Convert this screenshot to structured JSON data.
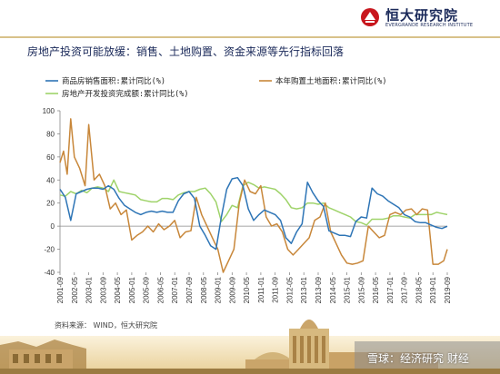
{
  "header": {
    "logo_name": "恒大研究院",
    "logo_sub": "EVERGRANDE RESEARCH INSTITUTE"
  },
  "page_title": "房地产投资可能放缓：销售、土地购置、资金来源等先行指标回落",
  "source_note": "资料来源：   WIND，恒大研究院",
  "watermark": "雪球：经济研究 财经",
  "colors": {
    "sales": "#2e75b6",
    "land": "#c8873a",
    "funds": "#9fd36a",
    "title": "#1b2a5a"
  },
  "chart_data": {
    "type": "line",
    "title": "",
    "xlabel": "",
    "ylabel": "",
    "ylim": [
      -40,
      100
    ],
    "yticks": [
      -40,
      -20,
      0,
      20,
      40,
      60,
      80,
      100
    ],
    "x_tick_labels": [
      "2001-09",
      "2002-05",
      "2003-01",
      "2003-09",
      "2004-05",
      "2005-01",
      "2005-09",
      "2006-05",
      "2007-01",
      "2007-09",
      "2008-05",
      "2009-01",
      "2009-09",
      "2010-05",
      "2011-01",
      "2011-09",
      "2012-05",
      "2013-01",
      "2013-09",
      "2014-05",
      "2015-01",
      "2015-09",
      "2016-05",
      "2017-01",
      "2017-09",
      "2018-05",
      "2019-01",
      "2019-09"
    ],
    "legend_position": "top",
    "series": [
      {
        "name": "商品房销售面积:累计同比(%)",
        "key": "sales",
        "points": [
          [
            "2001-09",
            32
          ],
          [
            "2001-12",
            25
          ],
          [
            "2002-03",
            5
          ],
          [
            "2002-06",
            28
          ],
          [
            "2002-09",
            30
          ],
          [
            "2002-12",
            32
          ],
          [
            "2003-03",
            33
          ],
          [
            "2003-06",
            33
          ],
          [
            "2003-09",
            32
          ],
          [
            "2003-12",
            35
          ],
          [
            "2004-03",
            32
          ],
          [
            "2004-06",
            24
          ],
          [
            "2004-09",
            18
          ],
          [
            "2004-12",
            15
          ],
          [
            "2005-03",
            12
          ],
          [
            "2005-06",
            10
          ],
          [
            "2005-09",
            12
          ],
          [
            "2005-12",
            13
          ],
          [
            "2006-03",
            12
          ],
          [
            "2006-06",
            13
          ],
          [
            "2006-09",
            12
          ],
          [
            "2006-12",
            12
          ],
          [
            "2007-03",
            22
          ],
          [
            "2007-06",
            28
          ],
          [
            "2007-09",
            30
          ],
          [
            "2007-12",
            24
          ],
          [
            "2008-03",
            0
          ],
          [
            "2008-06",
            -8
          ],
          [
            "2008-09",
            -17
          ],
          [
            "2008-12",
            -20
          ],
          [
            "2009-03",
            8
          ],
          [
            "2009-06",
            32
          ],
          [
            "2009-09",
            41
          ],
          [
            "2009-12",
            42
          ],
          [
            "2010-03",
            35
          ],
          [
            "2010-06",
            15
          ],
          [
            "2010-09",
            5
          ],
          [
            "2010-12",
            10
          ],
          [
            "2011-03",
            14
          ],
          [
            "2011-06",
            12
          ],
          [
            "2011-09",
            10
          ],
          [
            "2011-12",
            5
          ],
          [
            "2012-03",
            -10
          ],
          [
            "2012-06",
            -15
          ],
          [
            "2012-09",
            -5
          ],
          [
            "2012-12",
            2
          ],
          [
            "2013-03",
            38
          ],
          [
            "2013-06",
            29
          ],
          [
            "2013-09",
            22
          ],
          [
            "2013-12",
            17
          ],
          [
            "2014-03",
            -4
          ],
          [
            "2014-06",
            -6
          ],
          [
            "2014-09",
            -8
          ],
          [
            "2014-12",
            -8
          ],
          [
            "2015-03",
            -9
          ],
          [
            "2015-06",
            4
          ],
          [
            "2015-09",
            8
          ],
          [
            "2015-12",
            7
          ],
          [
            "2016-03",
            33
          ],
          [
            "2016-06",
            28
          ],
          [
            "2016-09",
            26
          ],
          [
            "2016-12",
            22
          ],
          [
            "2017-03",
            19
          ],
          [
            "2017-06",
            16
          ],
          [
            "2017-09",
            10
          ],
          [
            "2017-12",
            8
          ],
          [
            "2018-03",
            4
          ],
          [
            "2018-06",
            3
          ],
          [
            "2018-09",
            3
          ],
          [
            "2018-12",
            1
          ],
          [
            "2019-03",
            -1
          ],
          [
            "2019-06",
            -2
          ],
          [
            "2019-09",
            -0.1
          ]
        ]
      },
      {
        "name": "本年购置土地面积:累计同比(%)",
        "key": "land",
        "points": [
          [
            "2001-09",
            55
          ],
          [
            "2001-11",
            65
          ],
          [
            "2002-01",
            45
          ],
          [
            "2002-03",
            93
          ],
          [
            "2002-05",
            60
          ],
          [
            "2002-08",
            50
          ],
          [
            "2002-11",
            35
          ],
          [
            "2003-01",
            88
          ],
          [
            "2003-04",
            40
          ],
          [
            "2003-07",
            45
          ],
          [
            "2003-10",
            35
          ],
          [
            "2004-01",
            15
          ],
          [
            "2004-04",
            20
          ],
          [
            "2004-07",
            10
          ],
          [
            "2004-10",
            14
          ],
          [
            "2005-01",
            -12
          ],
          [
            "2005-04",
            -8
          ],
          [
            "2005-07",
            -5
          ],
          [
            "2005-10",
            0
          ],
          [
            "2006-01",
            -5
          ],
          [
            "2006-04",
            2
          ],
          [
            "2006-07",
            -3
          ],
          [
            "2006-10",
            0
          ],
          [
            "2007-01",
            5
          ],
          [
            "2007-04",
            -10
          ],
          [
            "2007-07",
            -5
          ],
          [
            "2007-10",
            -4
          ],
          [
            "2008-01",
            25
          ],
          [
            "2008-04",
            10
          ],
          [
            "2008-07",
            0
          ],
          [
            "2008-10",
            -10
          ],
          [
            "2009-01",
            -20
          ],
          [
            "2009-04",
            -40
          ],
          [
            "2009-07",
            -30
          ],
          [
            "2009-10",
            -20
          ],
          [
            "2010-01",
            20
          ],
          [
            "2010-04",
            40
          ],
          [
            "2010-07",
            30
          ],
          [
            "2010-10",
            28
          ],
          [
            "2011-01",
            35
          ],
          [
            "2011-04",
            8
          ],
          [
            "2011-07",
            0
          ],
          [
            "2011-10",
            2
          ],
          [
            "2012-01",
            -5
          ],
          [
            "2012-04",
            -20
          ],
          [
            "2012-07",
            -25
          ],
          [
            "2012-10",
            -20
          ],
          [
            "2013-01",
            -15
          ],
          [
            "2013-04",
            -10
          ],
          [
            "2013-07",
            5
          ],
          [
            "2013-10",
            8
          ],
          [
            "2014-01",
            20
          ],
          [
            "2014-04",
            -5
          ],
          [
            "2014-07",
            -15
          ],
          [
            "2014-10",
            -25
          ],
          [
            "2015-01",
            -32
          ],
          [
            "2015-04",
            -33
          ],
          [
            "2015-07",
            -32
          ],
          [
            "2015-10",
            -30
          ],
          [
            "2016-01",
            0
          ],
          [
            "2016-04",
            -5
          ],
          [
            "2016-07",
            -10
          ],
          [
            "2016-10",
            -8
          ],
          [
            "2017-01",
            10
          ],
          [
            "2017-04",
            12
          ],
          [
            "2017-07",
            10
          ],
          [
            "2017-10",
            14
          ],
          [
            "2018-01",
            15
          ],
          [
            "2018-04",
            10
          ],
          [
            "2018-07",
            15
          ],
          [
            "2018-10",
            14
          ],
          [
            "2019-01",
            -33
          ],
          [
            "2019-04",
            -33
          ],
          [
            "2019-07",
            -30
          ],
          [
            "2019-09",
            -20
          ]
        ]
      },
      {
        "name": "房地产开发投资完成额:累计同比(%)",
        "key": "funds",
        "points": [
          [
            "2001-09",
            27
          ],
          [
            "2001-12",
            26
          ],
          [
            "2002-03",
            30
          ],
          [
            "2002-06",
            28
          ],
          [
            "2002-09",
            31
          ],
          [
            "2002-12",
            29
          ],
          [
            "2003-03",
            33
          ],
          [
            "2003-06",
            34
          ],
          [
            "2003-09",
            33
          ],
          [
            "2003-12",
            30
          ],
          [
            "2004-03",
            40
          ],
          [
            "2004-06",
            30
          ],
          [
            "2004-09",
            29
          ],
          [
            "2004-12",
            28
          ],
          [
            "2005-03",
            27
          ],
          [
            "2005-06",
            23
          ],
          [
            "2005-09",
            22
          ],
          [
            "2005-12",
            21
          ],
          [
            "2006-03",
            21
          ],
          [
            "2006-06",
            24
          ],
          [
            "2006-09",
            24
          ],
          [
            "2006-12",
            23
          ],
          [
            "2007-03",
            27
          ],
          [
            "2007-06",
            29
          ],
          [
            "2007-09",
            30
          ],
          [
            "2007-12",
            30
          ],
          [
            "2008-03",
            32
          ],
          [
            "2008-06",
            33
          ],
          [
            "2008-09",
            28
          ],
          [
            "2008-12",
            21
          ],
          [
            "2009-03",
            4
          ],
          [
            "2009-06",
            10
          ],
          [
            "2009-09",
            18
          ],
          [
            "2009-12",
            16
          ],
          [
            "2010-03",
            35
          ],
          [
            "2010-06",
            38
          ],
          [
            "2010-09",
            36
          ],
          [
            "2010-12",
            33
          ],
          [
            "2011-03",
            34
          ],
          [
            "2011-06",
            33
          ],
          [
            "2011-09",
            32
          ],
          [
            "2011-12",
            28
          ],
          [
            "2012-03",
            23
          ],
          [
            "2012-06",
            16
          ],
          [
            "2012-09",
            15
          ],
          [
            "2012-12",
            16
          ],
          [
            "2013-03",
            20
          ],
          [
            "2013-06",
            20
          ],
          [
            "2013-09",
            19
          ],
          [
            "2013-12",
            20
          ],
          [
            "2014-03",
            16
          ],
          [
            "2014-06",
            14
          ],
          [
            "2014-09",
            12
          ],
          [
            "2014-12",
            10
          ],
          [
            "2015-03",
            8
          ],
          [
            "2015-06",
            4
          ],
          [
            "2015-09",
            3
          ],
          [
            "2015-12",
            1
          ],
          [
            "2016-03",
            6
          ],
          [
            "2016-06",
            6
          ],
          [
            "2016-09",
            6
          ],
          [
            "2016-12",
            7
          ],
          [
            "2017-03",
            9
          ],
          [
            "2017-06",
            9
          ],
          [
            "2017-09",
            8
          ],
          [
            "2017-12",
            7
          ],
          [
            "2018-03",
            10
          ],
          [
            "2018-06",
            10
          ],
          [
            "2018-09",
            10
          ],
          [
            "2018-12",
            10
          ],
          [
            "2019-03",
            12
          ],
          [
            "2019-06",
            11
          ],
          [
            "2019-09",
            10
          ]
        ]
      }
    ]
  }
}
